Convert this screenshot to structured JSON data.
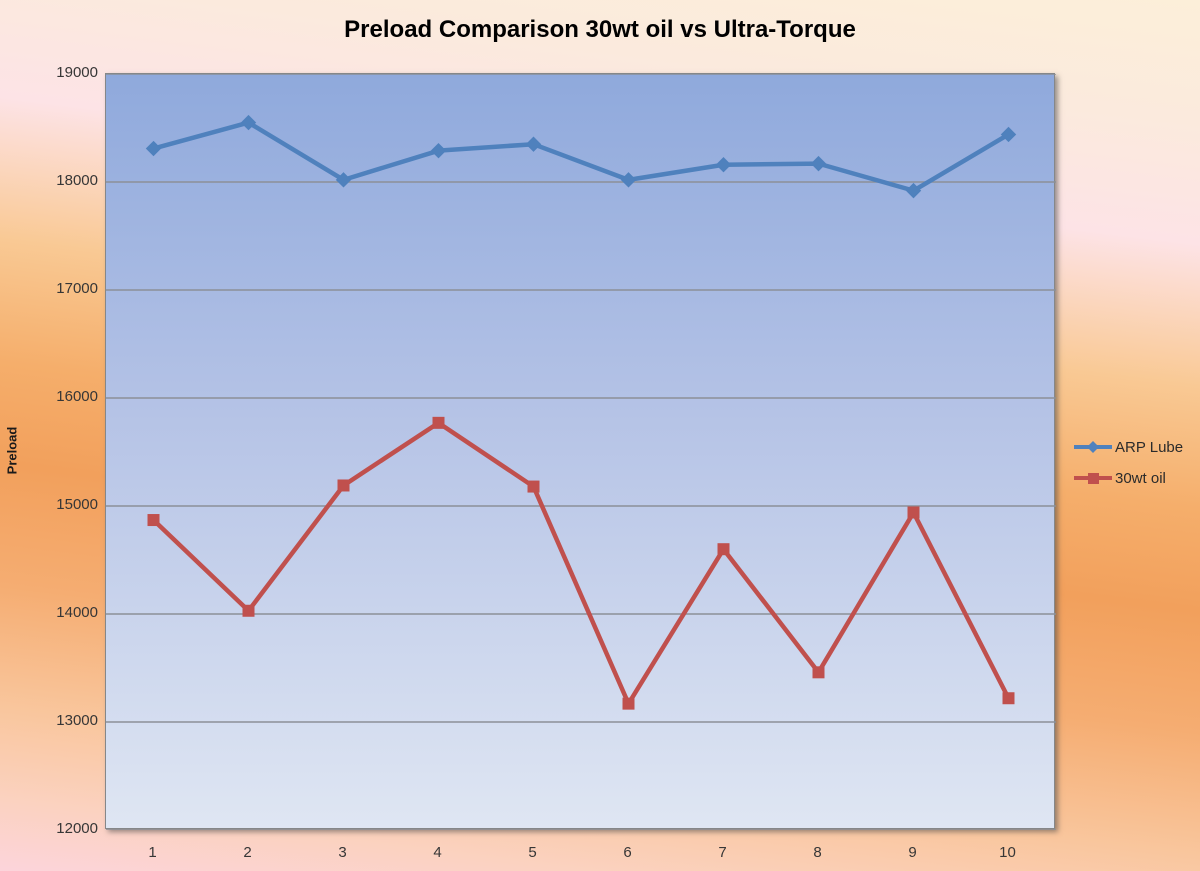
{
  "chart_data": {
    "type": "line",
    "title": "Preload Comparison 30wt oil vs Ultra-Torque",
    "xlabel": "",
    "ylabel": "Preload",
    "categories": [
      "1",
      "2",
      "3",
      "4",
      "5",
      "6",
      "7",
      "8",
      "9",
      "10"
    ],
    "series": [
      {
        "name": "ARP Lube",
        "color": "#4F81BD",
        "marker": "diamond",
        "values": [
          18310,
          18550,
          18020,
          18290,
          18350,
          18020,
          18160,
          18170,
          17920,
          18440
        ]
      },
      {
        "name": "30wt oil",
        "color": "#C0504D",
        "marker": "square",
        "values": [
          14870,
          14030,
          15190,
          15770,
          15180,
          13170,
          14600,
          13460,
          14940,
          13220
        ]
      }
    ],
    "ylim": [
      12000,
      19000
    ],
    "y_ticks": [
      12000,
      13000,
      14000,
      15000,
      16000,
      17000,
      18000,
      19000
    ],
    "grid": "horizontal",
    "gridline_color": "#8c9097",
    "legend_position": "right"
  }
}
